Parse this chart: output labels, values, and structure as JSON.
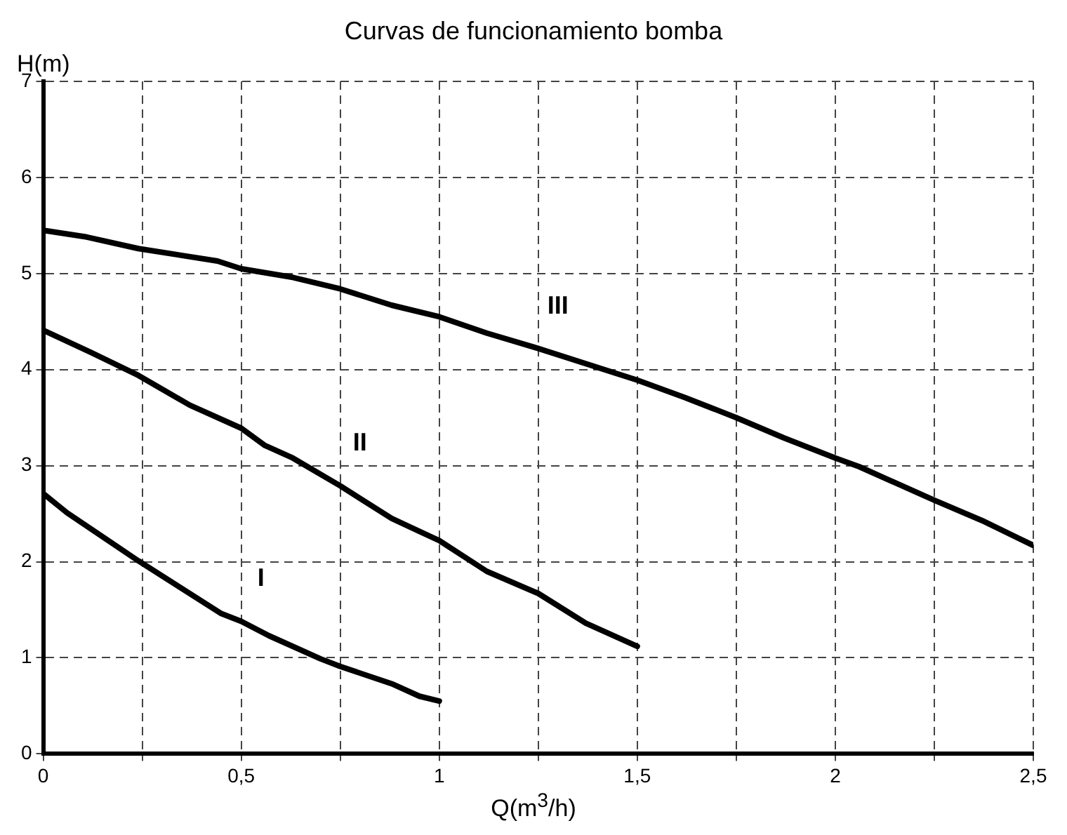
{
  "chart_data": {
    "type": "line",
    "title": "Curvas de funcionamiento bomba",
    "xlabel": "Q(m$^{3}$/h)",
    "ylabel": "H(m)",
    "series": [
      {
        "name": "I",
        "color": "#000000",
        "x": [
          0,
          0.06,
          0.24,
          0.37,
          0.45,
          0.5,
          0.57,
          0.7,
          0.75,
          0.88,
          0.95,
          1.0
        ],
        "values": [
          2.71,
          2.51,
          2.01,
          1.67,
          1.46,
          1.38,
          1.23,
          0.99,
          0.91,
          0.73,
          0.6,
          0.55
        ]
      },
      {
        "name": "II",
        "color": "#000000",
        "x": [
          0,
          0.12,
          0.24,
          0.37,
          0.5,
          0.56,
          0.63,
          0.75,
          0.88,
          1.0,
          1.12,
          1.25,
          1.37,
          1.5
        ],
        "values": [
          4.41,
          4.18,
          3.94,
          3.63,
          3.39,
          3.21,
          3.08,
          2.79,
          2.45,
          2.22,
          1.9,
          1.67,
          1.36,
          1.12
        ]
      },
      {
        "name": "III",
        "color": "#000000",
        "x": [
          0,
          0.11,
          0.24,
          0.44,
          0.5,
          0.63,
          0.75,
          0.88,
          1.0,
          1.12,
          1.25,
          1.5,
          1.62,
          1.75,
          1.87,
          2.0,
          2.06,
          2.25,
          2.37,
          2.5
        ],
        "values": [
          5.45,
          5.38,
          5.26,
          5.13,
          5.05,
          4.96,
          4.84,
          4.67,
          4.55,
          4.38,
          4.22,
          3.89,
          3.71,
          3.5,
          3.29,
          3.08,
          2.99,
          2.64,
          2.43,
          2.17
        ]
      }
    ],
    "xlim": [
      0,
      2.5
    ],
    "ylim": [
      0,
      7
    ],
    "xticks": [
      0,
      {
        "value": 0.25,
        "label": null
      },
      {
        "value": 0.5,
        "label": "0,5"
      },
      {
        "value": 0.75,
        "label": null
      },
      1,
      {
        "value": 1.25,
        "label": null
      },
      {
        "value": 1.5,
        "label": "1,5"
      },
      {
        "value": 1.75,
        "label": null
      },
      2,
      {
        "value": 2.25,
        "label": null
      },
      {
        "value": 2.5,
        "label": "2,5"
      }
    ],
    "yticks": [
      0,
      1,
      2,
      3,
      4,
      5,
      6,
      7
    ],
    "grid": true,
    "legend": false,
    "marker": "none",
    "line_style": "solid"
  }
}
